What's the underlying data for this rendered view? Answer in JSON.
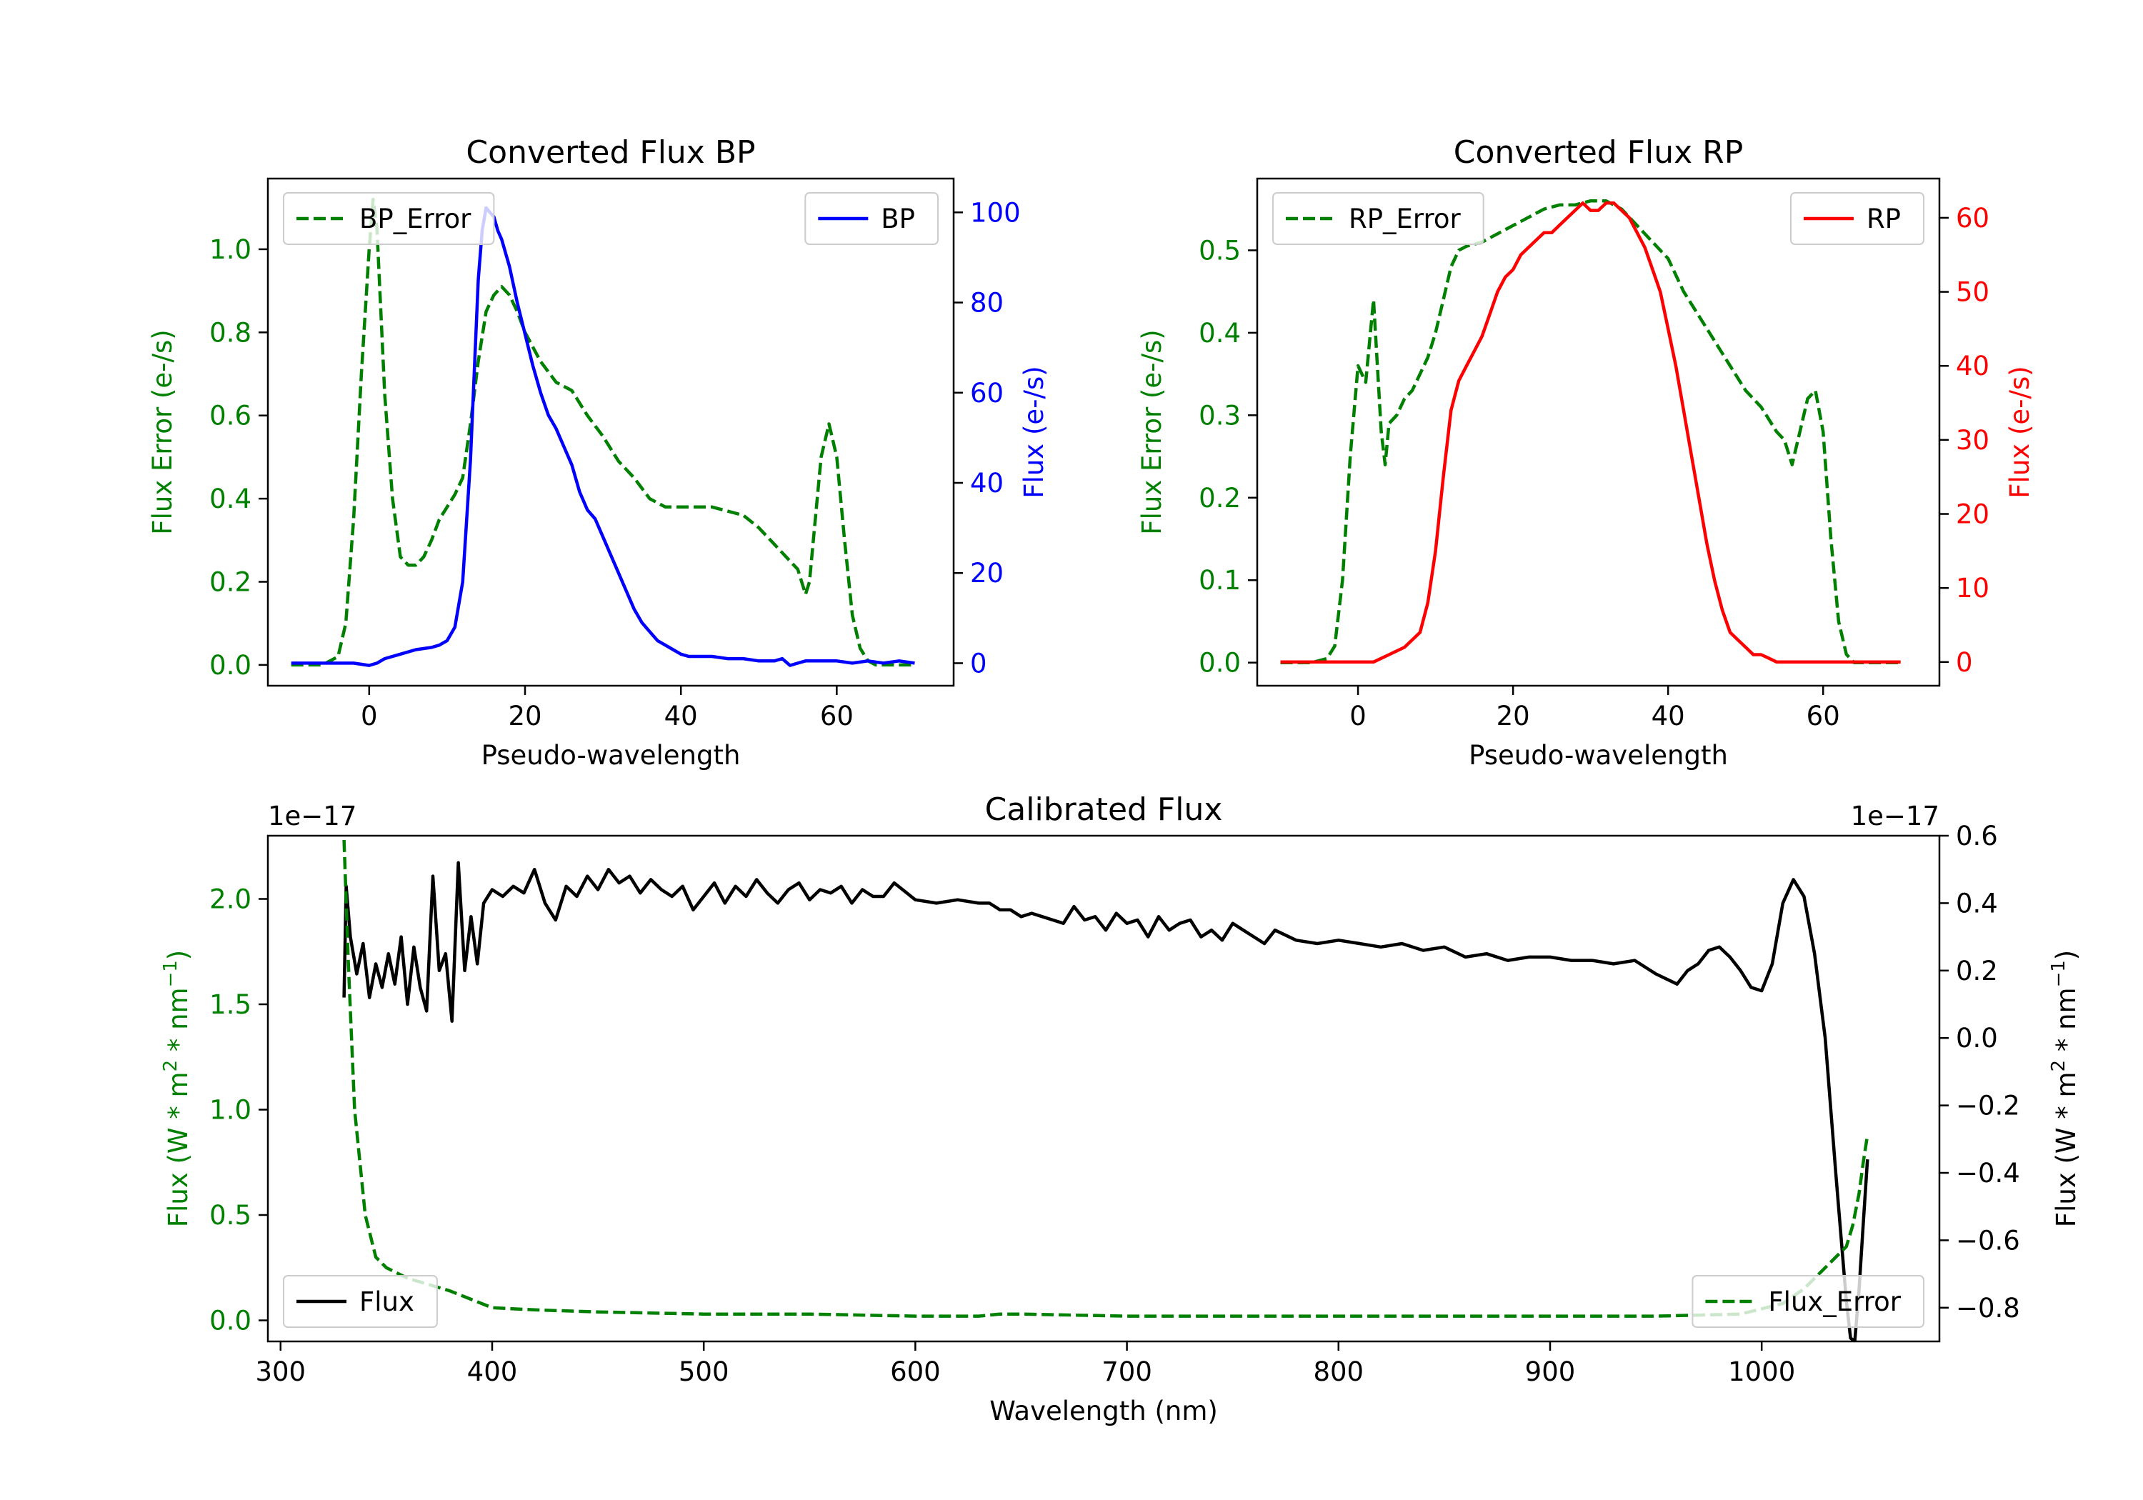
{
  "chart_data": [
    {
      "id": "bp",
      "type": "line",
      "title": "Converted Flux BP",
      "xlabel": "Pseudo-wavelength",
      "xlim": [
        -13,
        75
      ],
      "xticks": [
        0,
        20,
        40,
        60
      ],
      "left_axis": {
        "label": "Flux Error (e-/s)",
        "color": "#008000",
        "ylim": [
          -0.05,
          1.17
        ],
        "ticks": [
          0.0,
          0.2,
          0.4,
          0.6,
          0.8,
          1.0
        ],
        "tick_labels": [
          "0.0",
          "0.2",
          "0.4",
          "0.6",
          "0.8",
          "1.0"
        ]
      },
      "right_axis": {
        "label": "Flux (e-/s)",
        "color": "#0000ff",
        "ylim": [
          -5,
          107.5
        ],
        "ticks": [
          0,
          20,
          40,
          60,
          80,
          100
        ],
        "tick_labels": [
          "0",
          "20",
          "40",
          "60",
          "80",
          "100"
        ]
      },
      "legends": [
        {
          "label": "BP_Error",
          "style": "dashed",
          "color": "#008000",
          "position": "upper-left"
        },
        {
          "label": "BP",
          "style": "solid",
          "color": "#0000ff",
          "position": "upper-right"
        }
      ],
      "series": [
        {
          "name": "BP_Error",
          "axis": "left",
          "style": "dashed",
          "color": "#008000",
          "x": [
            -10,
            -6,
            -4,
            -3,
            -2,
            -1,
            0,
            0.5,
            1,
            2,
            3,
            4,
            5,
            6,
            7,
            8,
            9,
            10,
            11,
            12,
            13,
            14,
            15,
            16,
            17,
            18,
            19,
            20,
            22,
            24,
            26,
            28,
            30,
            32,
            34,
            36,
            38,
            40,
            42,
            44,
            46,
            48,
            50,
            52,
            54,
            55,
            56,
            56.5,
            57,
            58,
            59,
            60,
            61,
            62,
            63,
            64,
            65,
            66,
            70
          ],
          "y": [
            0,
            0,
            0.02,
            0.1,
            0.35,
            0.7,
            1.0,
            1.12,
            1.05,
            0.65,
            0.4,
            0.26,
            0.24,
            0.24,
            0.26,
            0.3,
            0.35,
            0.38,
            0.41,
            0.45,
            0.58,
            0.73,
            0.85,
            0.89,
            0.91,
            0.89,
            0.85,
            0.8,
            0.73,
            0.68,
            0.66,
            0.6,
            0.55,
            0.49,
            0.45,
            0.4,
            0.38,
            0.38,
            0.38,
            0.38,
            0.37,
            0.36,
            0.33,
            0.29,
            0.25,
            0.23,
            0.17,
            0.2,
            0.3,
            0.5,
            0.58,
            0.5,
            0.3,
            0.12,
            0.04,
            0.01,
            0.0,
            0.0,
            0.0
          ]
        },
        {
          "name": "BP",
          "axis": "right",
          "style": "solid",
          "color": "#0000ff",
          "x": [
            -10,
            -6,
            -4,
            -2,
            0,
            1,
            2,
            4,
            6,
            8,
            9,
            10,
            11,
            12,
            13,
            14,
            14.5,
            15,
            15.5,
            16,
            16.5,
            17,
            18,
            19,
            20,
            21,
            22,
            23,
            24,
            25,
            26,
            27,
            28,
            29,
            30,
            31,
            32,
            33,
            34,
            35,
            36,
            37,
            38,
            39,
            40,
            41,
            42,
            44,
            46,
            48,
            50,
            52,
            53,
            54,
            55,
            56,
            58,
            60,
            62,
            64,
            66,
            68,
            70
          ],
          "y": [
            0,
            0,
            0,
            0,
            -0.5,
            0,
            1,
            2,
            3,
            3.5,
            4,
            5,
            8,
            18,
            45,
            85,
            96,
            101,
            100,
            99,
            96,
            94,
            88,
            80,
            73,
            66,
            60,
            55,
            52,
            48,
            44,
            38,
            34,
            32,
            28,
            24,
            20,
            16,
            12,
            9,
            7,
            5,
            4,
            3,
            2,
            1.5,
            1.5,
            1.5,
            1,
            1,
            0.5,
            0.5,
            1,
            -0.5,
            0,
            0.5,
            0.5,
            0.5,
            0,
            0.5,
            0,
            0.5,
            0
          ]
        }
      ]
    },
    {
      "id": "rp",
      "type": "line",
      "title": "Converted Flux RP",
      "xlabel": "Pseudo-wavelength",
      "xlim": [
        -13,
        75
      ],
      "xticks": [
        0,
        20,
        40,
        60
      ],
      "left_axis": {
        "label": "Flux Error (e-/s)",
        "color": "#008000",
        "ylim": [
          -0.028,
          0.587
        ],
        "ticks": [
          0.0,
          0.1,
          0.2,
          0.3,
          0.4,
          0.5
        ],
        "tick_labels": [
          "0.0",
          "0.1",
          "0.2",
          "0.3",
          "0.4",
          "0.5"
        ]
      },
      "right_axis": {
        "label": "Flux (e-/s)",
        "color": "#ff0000",
        "ylim": [
          -3.2,
          65.3
        ],
        "ticks": [
          0,
          10,
          20,
          30,
          40,
          50,
          60
        ],
        "tick_labels": [
          "0",
          "10",
          "20",
          "30",
          "40",
          "50",
          "60"
        ]
      },
      "legends": [
        {
          "label": "RP_Error",
          "style": "dashed",
          "color": "#008000",
          "position": "upper-left"
        },
        {
          "label": "RP",
          "style": "solid",
          "color": "#ff0000",
          "position": "upper-right"
        }
      ],
      "series": [
        {
          "name": "RP_Error",
          "axis": "left",
          "style": "dashed",
          "color": "#008000",
          "x": [
            -10,
            -6,
            -4,
            -3,
            -2,
            -1,
            0,
            1,
            2,
            3,
            3.5,
            4,
            5,
            6,
            7,
            8,
            9,
            10,
            11,
            12,
            13,
            14,
            16,
            18,
            20,
            22,
            24,
            26,
            28,
            30,
            32,
            34,
            36,
            38,
            40,
            42,
            44,
            46,
            48,
            50,
            52,
            54,
            55,
            56,
            56.5,
            57,
            58,
            59,
            60,
            61,
            62,
            63,
            64,
            70
          ],
          "y": [
            0,
            0,
            0.005,
            0.02,
            0.1,
            0.25,
            0.36,
            0.34,
            0.44,
            0.28,
            0.24,
            0.29,
            0.3,
            0.32,
            0.33,
            0.35,
            0.37,
            0.4,
            0.44,
            0.48,
            0.5,
            0.505,
            0.51,
            0.52,
            0.53,
            0.54,
            0.55,
            0.555,
            0.555,
            0.56,
            0.56,
            0.55,
            0.53,
            0.51,
            0.49,
            0.45,
            0.42,
            0.39,
            0.36,
            0.33,
            0.31,
            0.28,
            0.27,
            0.24,
            0.26,
            0.28,
            0.32,
            0.33,
            0.28,
            0.15,
            0.05,
            0.01,
            0.0,
            0.0
          ]
        },
        {
          "name": "RP",
          "axis": "right",
          "style": "solid",
          "color": "#ff0000",
          "x": [
            -10,
            -4,
            0,
            2,
            4,
            6,
            8,
            9,
            10,
            11,
            12,
            13,
            14,
            15,
            16,
            17,
            18,
            19,
            20,
            21,
            22,
            23,
            24,
            25,
            26,
            27,
            28,
            29,
            30,
            31,
            32,
            33,
            34,
            35,
            36,
            37,
            38,
            39,
            40,
            41,
            42,
            43,
            44,
            45,
            46,
            47,
            48,
            49,
            50,
            51,
            52,
            53,
            54,
            55,
            56,
            57,
            58,
            60,
            62,
            64,
            66,
            70
          ],
          "y": [
            0,
            0,
            0,
            0,
            1,
            2,
            4,
            8,
            15,
            25,
            34,
            38,
            40,
            42,
            44,
            47,
            50,
            52,
            53,
            55,
            56,
            57,
            58,
            58,
            59,
            60,
            61,
            62,
            61,
            61,
            62,
            62,
            61,
            60,
            58,
            56,
            53,
            50,
            45,
            40,
            34,
            28,
            22,
            16,
            11,
            7,
            4,
            3,
            2,
            1,
            1,
            0.5,
            0,
            0,
            0,
            0,
            0,
            0,
            0,
            0,
            0,
            0
          ]
        }
      ]
    },
    {
      "id": "calibrated",
      "type": "line",
      "title": "Calibrated Flux",
      "xlabel": "Wavelength (nm)",
      "xlim": [
        294,
        1084
      ],
      "xticks": [
        300,
        400,
        500,
        600,
        700,
        800,
        900,
        1000
      ],
      "left_axis": {
        "label": "Flux (W * m² * nm⁻¹)",
        "color": "#008000",
        "ylim": [
          -0.1,
          2.3
        ],
        "offset_text": "1e−17",
        "ticks": [
          0.0,
          0.5,
          1.0,
          1.5,
          2.0
        ],
        "tick_labels": [
          "0.0",
          "0.5",
          "1.0",
          "1.5",
          "2.0"
        ]
      },
      "right_axis": {
        "label": "Flux (W * m² * nm⁻¹)",
        "color": "#000000",
        "ylim": [
          -0.9,
          0.6
        ],
        "offset_text": "1e−17",
        "ticks": [
          -0.8,
          -0.6,
          -0.4,
          -0.2,
          0.0,
          0.2,
          0.4,
          0.6
        ],
        "tick_labels": [
          "−0.8",
          "−0.6",
          "−0.4",
          "−0.2",
          "0.0",
          "0.2",
          "0.4",
          "0.6"
        ]
      },
      "legends": [
        {
          "label": "Flux",
          "style": "solid",
          "color": "#000000",
          "position": "lower-left"
        },
        {
          "label": "Flux_Error",
          "style": "dashed",
          "color": "#008000",
          "position": "lower-right"
        }
      ],
      "series": [
        {
          "name": "Flux",
          "axis": "right",
          "style": "solid",
          "color": "#000000",
          "x": [
            330,
            331,
            333,
            336,
            339,
            342,
            345,
            348,
            351,
            354,
            357,
            360,
            363,
            366,
            369,
            372,
            375,
            378,
            381,
            384,
            387,
            390,
            393,
            396,
            400,
            405,
            410,
            415,
            420,
            425,
            430,
            435,
            440,
            445,
            450,
            455,
            460,
            465,
            470,
            475,
            480,
            485,
            490,
            495,
            500,
            505,
            510,
            515,
            520,
            525,
            530,
            535,
            540,
            545,
            550,
            555,
            560,
            565,
            570,
            575,
            580,
            585,
            590,
            600,
            610,
            620,
            630,
            635,
            640,
            645,
            650,
            655,
            660,
            665,
            670,
            675,
            680,
            685,
            690,
            695,
            700,
            705,
            710,
            715,
            720,
            725,
            730,
            735,
            740,
            745,
            750,
            755,
            760,
            765,
            770,
            780,
            790,
            800,
            810,
            820,
            830,
            840,
            850,
            860,
            870,
            880,
            890,
            900,
            910,
            920,
            930,
            940,
            950,
            960,
            965,
            970,
            975,
            980,
            985,
            990,
            995,
            1000,
            1005,
            1010,
            1015,
            1020,
            1025,
            1030,
            1035,
            1040,
            1042,
            1044,
            1046,
            1048,
            1050
          ],
          "y": [
            0.12,
            0.45,
            0.3,
            0.19,
            0.28,
            0.12,
            0.22,
            0.15,
            0.25,
            0.16,
            0.3,
            0.1,
            0.27,
            0.15,
            0.08,
            0.48,
            0.2,
            0.25,
            0.05,
            0.52,
            0.2,
            0.36,
            0.22,
            0.4,
            0.44,
            0.42,
            0.45,
            0.43,
            0.5,
            0.4,
            0.35,
            0.45,
            0.42,
            0.48,
            0.44,
            0.5,
            0.46,
            0.48,
            0.43,
            0.47,
            0.44,
            0.42,
            0.45,
            0.38,
            0.42,
            0.46,
            0.4,
            0.45,
            0.42,
            0.47,
            0.43,
            0.4,
            0.44,
            0.46,
            0.41,
            0.44,
            0.43,
            0.45,
            0.4,
            0.44,
            0.42,
            0.42,
            0.46,
            0.41,
            0.4,
            0.41,
            0.4,
            0.4,
            0.38,
            0.38,
            0.36,
            0.37,
            0.36,
            0.35,
            0.34,
            0.39,
            0.35,
            0.36,
            0.32,
            0.37,
            0.34,
            0.35,
            0.3,
            0.36,
            0.32,
            0.34,
            0.35,
            0.3,
            0.32,
            0.29,
            0.34,
            0.32,
            0.3,
            0.28,
            0.32,
            0.29,
            0.28,
            0.29,
            0.28,
            0.27,
            0.28,
            0.26,
            0.27,
            0.24,
            0.25,
            0.23,
            0.24,
            0.24,
            0.23,
            0.23,
            0.22,
            0.23,
            0.19,
            0.16,
            0.2,
            0.22,
            0.26,
            0.27,
            0.24,
            0.2,
            0.15,
            0.14,
            0.22,
            0.4,
            0.47,
            0.42,
            0.25,
            0.0,
            -0.4,
            -0.78,
            -0.89,
            -0.9,
            -0.75,
            -0.55,
            -0.36
          ]
        },
        {
          "name": "Flux_Error",
          "axis": "left",
          "style": "dashed",
          "color": "#008000",
          "x": [
            330,
            332,
            335,
            340,
            345,
            350,
            360,
            370,
            380,
            390,
            400,
            420,
            450,
            500,
            550,
            600,
            630,
            640,
            650,
            700,
            750,
            800,
            850,
            900,
            950,
            990,
            1010,
            1020,
            1030,
            1035,
            1040,
            1043,
            1046,
            1048,
            1050
          ],
          "y": [
            2.28,
            1.7,
            1.0,
            0.5,
            0.3,
            0.25,
            0.2,
            0.17,
            0.14,
            0.1,
            0.06,
            0.05,
            0.04,
            0.03,
            0.03,
            0.02,
            0.02,
            0.03,
            0.03,
            0.02,
            0.02,
            0.02,
            0.02,
            0.02,
            0.02,
            0.03,
            0.08,
            0.15,
            0.25,
            0.3,
            0.35,
            0.45,
            0.6,
            0.75,
            0.88
          ]
        }
      ]
    }
  ]
}
